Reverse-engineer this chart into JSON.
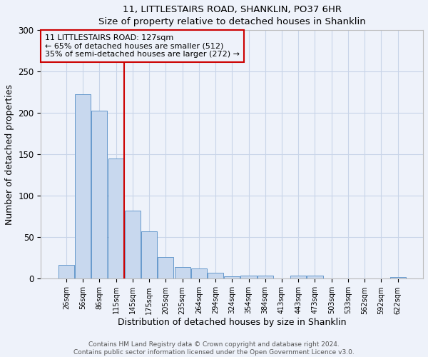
{
  "title": "11, LITTLESTAIRS ROAD, SHANKLIN, PO37 6HR",
  "subtitle": "Size of property relative to detached houses in Shanklin",
  "xlabel": "Distribution of detached houses by size in Shanklin",
  "ylabel": "Number of detached properties",
  "bar_labels": [
    "26sqm",
    "56sqm",
    "86sqm",
    "115sqm",
    "145sqm",
    "175sqm",
    "205sqm",
    "235sqm",
    "264sqm",
    "294sqm",
    "324sqm",
    "354sqm",
    "384sqm",
    "413sqm",
    "443sqm",
    "473sqm",
    "503sqm",
    "533sqm",
    "562sqm",
    "592sqm",
    "622sqm"
  ],
  "bar_values": [
    17,
    223,
    203,
    145,
    82,
    57,
    26,
    14,
    12,
    7,
    3,
    4,
    4,
    0,
    4,
    4,
    0,
    0,
    0,
    0,
    2
  ],
  "bar_color": "#c8d8ee",
  "bar_edge_color": "#6699cc",
  "vline_color": "#cc0000",
  "annotation_text": "11 LITTLESTAIRS ROAD: 127sqm\n← 65% of detached houses are smaller (512)\n35% of semi-detached houses are larger (272) →",
  "annotation_box_edge_color": "#cc0000",
  "ylim": [
    0,
    300
  ],
  "yticks": [
    0,
    50,
    100,
    150,
    200,
    250,
    300
  ],
  "grid_color": "#c8d4e8",
  "bg_color": "#eef2fa",
  "plot_bg_color": "#eef2fa",
  "footer": "Contains HM Land Registry data © Crown copyright and database right 2024.\nContains public sector information licensed under the Open Government Licence v3.0."
}
